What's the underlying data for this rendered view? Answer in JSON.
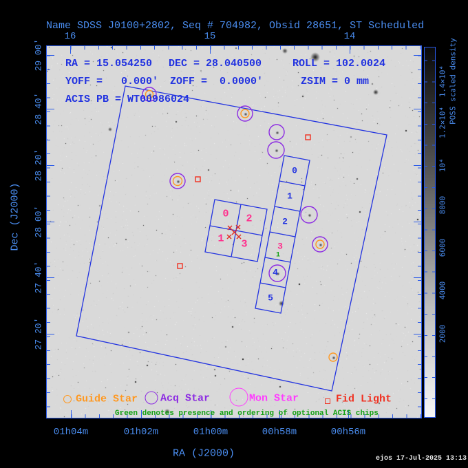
{
  "title": "Name SDSS J0100+2802, Seq # 704982, Obsid 28651, ST Scheduled",
  "overlay": {
    "ra": "RA = 15.054250",
    "dec": "DEC = 28.040500",
    "roll": "ROLL = 102.0024",
    "yoff": "YOFF =   0.000'",
    "zoff": "ZOFF =  0.0000'",
    "zsim": "ZSIM = 0 mm",
    "acis_pb": "ACIS PB = WT00986024"
  },
  "axes": {
    "x_label": "RA (J2000)",
    "y_label": "Dec (J2000)",
    "top": [
      "16",
      "15",
      "14"
    ],
    "bottom": [
      "01h04m",
      "01h02m",
      "01h00m",
      "00h58m",
      "00h56m"
    ],
    "left": [
      "29 00'",
      "28 40'",
      "28 20'",
      "28 00'",
      "27 40'",
      "27 20'"
    ]
  },
  "colorbar": {
    "title": "POSS scaled density",
    "labels": [
      "2000",
      "4000",
      "6000",
      "8000",
      "10⁴",
      "1.2×10⁴",
      "1.4×10⁴"
    ]
  },
  "acis": {
    "i_chips": [
      "0",
      "2",
      "1",
      "3"
    ],
    "s_chips": [
      "0",
      "1",
      "2",
      "3",
      "4",
      "5"
    ],
    "optional_chip_order": "1"
  },
  "legend": {
    "guide": "Guide Star",
    "acq": "Acq Star",
    "mon": "Mon Star",
    "fid": "Fid Light",
    "note": "Green denotes presence and ordering of optional ACIS chips"
  },
  "footer": {
    "timestamp": "ejos 17-Jul-2025 13:13"
  },
  "colors": {
    "label_blue": "#4a8df0",
    "frame_blue": "#2a5ae8",
    "vector_blue": "#2233e0",
    "chip_pink": "#ff2e8c",
    "optional_green": "#13a113",
    "guide_orange": "#ff9820",
    "acq_purple": "#8c2be2",
    "mon_magenta": "#ff3cff",
    "fid_red": "#f03020",
    "sky_gray": "#d9d9d9"
  }
}
